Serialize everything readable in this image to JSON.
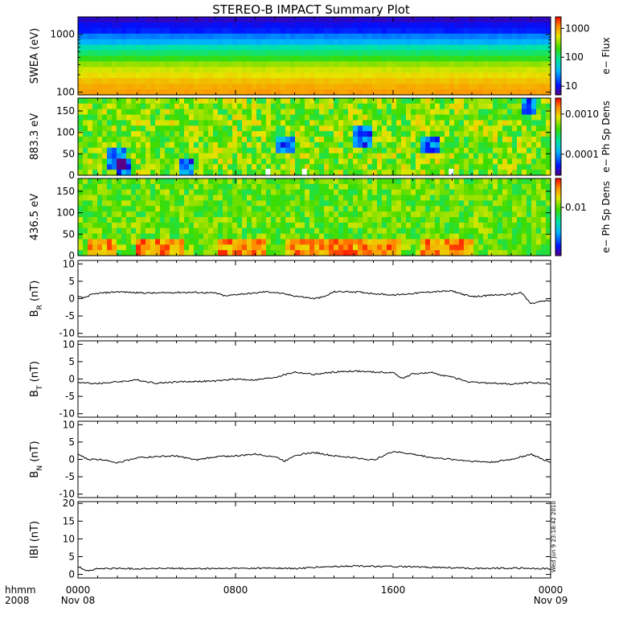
{
  "title": "STEREO-B IMPACT Summary Plot",
  "timestamp": "Wed Jun  9 23:18:42 2010",
  "time_axis": {
    "corner_top": "hhmm",
    "corner_bottom": "2008",
    "ticks": [
      {
        "hhmm": "0000",
        "date": "Nov 08",
        "hour": 0
      },
      {
        "hhmm": "0800",
        "date": "",
        "hour": 8
      },
      {
        "hhmm": "1600",
        "date": "",
        "hour": 16
      },
      {
        "hhmm": "0000",
        "date": "Nov 09",
        "hour": 24
      }
    ]
  },
  "colors": {
    "mag_line": "#000000",
    "gap": "#ffffff"
  },
  "chart_data": [
    {
      "type": "heatmap",
      "name": "swea",
      "ylabel": "SWEA (eV)",
      "yscale": "log",
      "ylim": [
        90,
        2000
      ],
      "yticks": [
        {
          "v": 1000,
          "label": "1000"
        },
        {
          "v": 100,
          "label": "100"
        }
      ],
      "colorbar": {
        "label": "e− Flux",
        "scale": "log",
        "range": [
          5,
          2500
        ],
        "ticks": [
          {
            "v": 1000,
            "label": "1000"
          },
          {
            "v": 100,
            "label": "100"
          },
          {
            "v": 10,
            "label": "10"
          }
        ]
      },
      "profile_vs_energy": [
        [
          100,
          1000
        ],
        [
          200,
          550
        ],
        [
          400,
          140
        ],
        [
          700,
          35
        ],
        [
          1100,
          12
        ],
        [
          2000,
          6
        ]
      ]
    },
    {
      "type": "heatmap",
      "name": "pad_883",
      "ylabel": "883.3 eV",
      "ylim": [
        0,
        180
      ],
      "yticks": [
        {
          "v": 150,
          "label": "150"
        },
        {
          "v": 100,
          "label": "100"
        },
        {
          "v": 50,
          "label": "50"
        },
        {
          "v": 0,
          "label": "0"
        }
      ],
      "colorbar": {
        "label": "e− Ph Sp Dens",
        "scale": "log",
        "range": [
          3e-05,
          0.0025
        ],
        "ticks": [
          {
            "v": 0.001,
            "label": "0.0010"
          },
          {
            "v": 0.0001,
            "label": "0.0001"
          }
        ]
      },
      "typical_value": 0.0005,
      "low_patches_hour_pitch": [
        [
          2.3,
          20
        ],
        [
          2.0,
          40
        ],
        [
          5.5,
          15
        ],
        [
          10.5,
          70
        ],
        [
          14.5,
          90
        ],
        [
          17.8,
          70
        ],
        [
          22.9,
          165
        ]
      ],
      "gaps_hour": [
        9.65,
        11.5,
        18.95
      ]
    },
    {
      "type": "heatmap",
      "name": "pad_436",
      "ylabel": "436.5 eV",
      "ylim": [
        0,
        180
      ],
      "yticks": [
        {
          "v": 150,
          "label": "150"
        },
        {
          "v": 100,
          "label": "100"
        },
        {
          "v": 50,
          "label": "50"
        },
        {
          "v": 0,
          "label": "0"
        }
      ],
      "colorbar": {
        "label": "e− Ph Sp Dens",
        "scale": "log",
        "range": [
          0.001,
          0.04
        ],
        "ticks": [
          {
            "v": 0.01,
            "label": "0.01"
          }
        ]
      },
      "typical_value": 0.01,
      "high_bands_hour": [
        [
          0.5,
          2.0
        ],
        [
          3.0,
          5.5
        ],
        [
          7.0,
          9.5
        ],
        [
          10.5,
          16.5
        ],
        [
          17.5,
          20.0
        ]
      ]
    },
    {
      "type": "line",
      "name": "br",
      "ylabel": "B",
      "ylabel_sub": "R",
      "ylabel_unit": " (nT)",
      "ylim": [
        -11,
        11
      ],
      "yticks": [
        {
          "v": 10,
          "label": "10"
        },
        {
          "v": 5,
          "label": "5"
        },
        {
          "v": 0,
          "label": "0"
        },
        {
          "v": -5,
          "label": "-5"
        },
        {
          "v": -10,
          "label": "-10"
        }
      ],
      "x_hours": [
        0,
        0.3,
        0.6,
        1,
        2,
        3,
        4,
        5,
        6,
        7,
        7.5,
        8,
        9,
        9.5,
        10,
        11,
        12,
        12.5,
        13,
        14,
        15,
        16,
        17,
        18,
        19,
        20,
        21,
        22,
        22.5,
        23,
        23.5,
        24
      ],
      "y_nT": [
        0.5,
        0.2,
        1.0,
        1.5,
        2.0,
        1.7,
        1.6,
        1.8,
        1.8,
        1.6,
        0.7,
        1.2,
        1.6,
        2.0,
        1.8,
        0.8,
        0.0,
        0.5,
        2.0,
        2.0,
        1.5,
        1.0,
        1.5,
        2.0,
        2.2,
        0.5,
        1.0,
        1.2,
        1.8,
        -1.5,
        -0.8,
        -0.6
      ]
    },
    {
      "type": "line",
      "name": "bt",
      "ylabel": "B",
      "ylabel_sub": "T",
      "ylabel_unit": " (nT)",
      "ylim": [
        -11,
        11
      ],
      "yticks": [
        {
          "v": 10,
          "label": "10"
        },
        {
          "v": 5,
          "label": "5"
        },
        {
          "v": 0,
          "label": "0"
        },
        {
          "v": -5,
          "label": "-5"
        },
        {
          "v": -10,
          "label": "-10"
        }
      ],
      "x_hours": [
        0,
        0.5,
        1,
        2,
        3,
        4,
        5,
        6,
        7,
        8,
        9,
        10,
        11,
        12,
        13,
        14,
        15,
        16,
        16.5,
        17,
        18,
        19,
        20,
        21,
        22,
        23,
        24
      ],
      "y_nT": [
        -1.0,
        -1.2,
        -1.3,
        -0.8,
        -0.3,
        -1.2,
        -0.8,
        -0.7,
        -0.6,
        0.0,
        -0.3,
        0.5,
        2.0,
        1.3,
        2.0,
        2.3,
        2.0,
        1.8,
        0.2,
        1.5,
        1.8,
        0.5,
        -1.0,
        -1.2,
        -1.5,
        -1.0,
        -1.3
      ]
    },
    {
      "type": "line",
      "name": "bn",
      "ylabel": "B",
      "ylabel_sub": "N",
      "ylabel_unit": " (nT)",
      "ylim": [
        -11,
        11
      ],
      "yticks": [
        {
          "v": 10,
          "label": "10"
        },
        {
          "v": 5,
          "label": "5"
        },
        {
          "v": 0,
          "label": "0"
        },
        {
          "v": -5,
          "label": "-5"
        },
        {
          "v": -10,
          "label": "-10"
        }
      ],
      "x_hours": [
        0,
        0.5,
        1,
        1.5,
        2,
        3,
        4,
        5,
        6,
        7,
        8,
        9,
        10,
        10.5,
        11,
        12,
        13,
        14,
        15,
        16,
        17,
        18,
        19,
        20,
        21,
        22,
        23,
        24
      ],
      "y_nT": [
        1.5,
        0.0,
        0.0,
        -0.2,
        -1.0,
        0.5,
        0.8,
        1.0,
        -0.2,
        0.8,
        1.0,
        1.5,
        0.8,
        -0.5,
        1.2,
        2.0,
        1.0,
        0.5,
        -0.2,
        2.3,
        1.5,
        0.5,
        0.0,
        -0.5,
        -0.8,
        0.0,
        1.5,
        -1.0
      ]
    },
    {
      "type": "line",
      "name": "bmag",
      "ylabel": "IBI (nT)",
      "ylim": [
        -1,
        20.5
      ],
      "yticks": [
        {
          "v": 20,
          "label": "20"
        },
        {
          "v": 15,
          "label": "15"
        },
        {
          "v": 10,
          "label": "10"
        },
        {
          "v": 5,
          "label": "5"
        },
        {
          "v": 0,
          "label": "0"
        }
      ],
      "x_hours": [
        0,
        0.5,
        1,
        2,
        3,
        4,
        6,
        8,
        10,
        11,
        12,
        14,
        16,
        18,
        20,
        22,
        24
      ],
      "y_nT": [
        2.2,
        1.0,
        1.6,
        1.7,
        1.6,
        1.7,
        1.6,
        1.7,
        1.8,
        1.6,
        2.0,
        2.4,
        2.2,
        2.0,
        1.7,
        1.8,
        1.6
      ]
    }
  ]
}
